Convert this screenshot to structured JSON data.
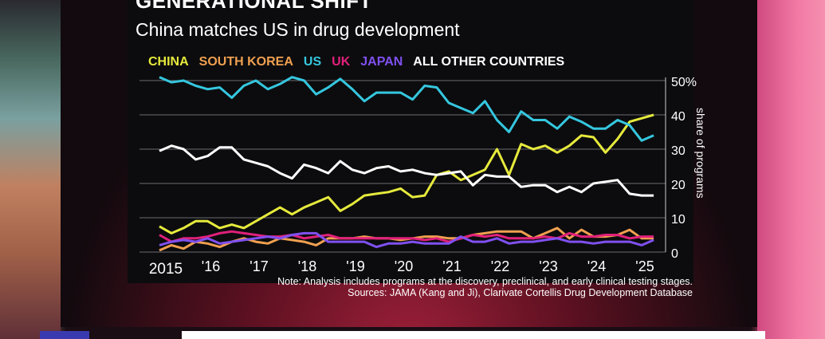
{
  "chart_data": {
    "type": "line",
    "title": "GENERATIONAL SHIFT",
    "subtitle": "China matches US in drug development",
    "ylabel": "share of programs",
    "ylim": [
      0,
      50
    ],
    "y_ticks": [
      "0",
      "10",
      "20",
      "30",
      "40",
      "50%"
    ],
    "y_tick_values": [
      0,
      10,
      20,
      30,
      40,
      50
    ],
    "x_ticks": [
      "2015",
      "'16",
      "'17",
      "'18",
      "'19",
      "'20",
      "'21",
      "'22",
      "'23",
      "'24",
      "'25"
    ],
    "x_tick_values": [
      2015,
      2016,
      2017,
      2018,
      2019,
      2020,
      2021,
      2022,
      2023,
      2024,
      2025
    ],
    "x_start": 2015,
    "x_step": 0.25,
    "grid": true,
    "legend_placement": "top",
    "series": [
      {
        "name": "CHINA",
        "color": "#e6ea3c",
        "values": [
          7.5,
          5.5,
          7,
          9,
          9,
          7,
          8,
          7,
          9,
          11,
          13,
          11,
          13,
          14.5,
          16,
          12,
          14,
          16.5,
          17,
          17.5,
          18.5,
          16,
          16.5,
          22.5,
          23.5,
          21,
          22.5,
          24,
          30,
          22.5,
          31.5,
          30,
          31,
          29,
          31,
          34,
          33.5,
          29,
          33,
          38,
          39,
          40
        ]
      },
      {
        "name": "SOUTH KOREA",
        "color": "#f0a050",
        "values": [
          0.5,
          2,
          1,
          3,
          2.5,
          1.5,
          3,
          4,
          3,
          2.5,
          4,
          3.5,
          3,
          2,
          4,
          4,
          4,
          4.5,
          4,
          4,
          3.5,
          4,
          4.5,
          4.5,
          4,
          4,
          5,
          5.5,
          6,
          6,
          6,
          4,
          5.5,
          7,
          4,
          6.5,
          4.5,
          4.5,
          5,
          6.5,
          4,
          4
        ]
      },
      {
        "name": "US",
        "color": "#35c7df",
        "values": [
          51,
          49.5,
          50,
          48.5,
          47.5,
          48,
          45,
          48.5,
          50,
          47.5,
          49,
          51,
          50,
          46,
          48,
          50.5,
          47.5,
          44,
          46.5,
          46.5,
          46.5,
          44.5,
          48.5,
          48,
          43.5,
          42,
          40.5,
          44,
          38.5,
          35,
          41,
          38.5,
          38.5,
          36,
          39.5,
          38,
          36,
          36,
          38.5,
          37,
          32.5,
          34
        ]
      },
      {
        "name": "UK",
        "color": "#e0207a",
        "values": [
          5,
          3,
          4,
          4,
          4.5,
          5.5,
          6,
          5.5,
          5,
          4.5,
          4.5,
          5,
          4,
          4.5,
          5,
          4,
          4,
          4,
          4,
          4,
          4,
          4,
          3.5,
          4,
          3,
          4,
          5,
          4.5,
          5,
          4,
          4,
          4,
          4.5,
          4,
          5.5,
          4.5,
          4.5,
          5,
          5,
          4,
          4.5,
          4.5
        ]
      },
      {
        "name": "JAPAN",
        "color": "#8050f0",
        "values": [
          2,
          3,
          3.5,
          3,
          4,
          2.5,
          3,
          3.5,
          4,
          4.5,
          4,
          5,
          5.5,
          5.5,
          3,
          3,
          3,
          3,
          1.5,
          2.5,
          2.5,
          3,
          2.5,
          2.5,
          2.5,
          4.5,
          3,
          3,
          4,
          2.5,
          3,
          3,
          3.5,
          4,
          3,
          3,
          2.5,
          3,
          3,
          3,
          2,
          3.5
        ]
      },
      {
        "name": "ALL OTHER COUNTRIES",
        "color": "#ffffff",
        "values": [
          29.5,
          31,
          30,
          27,
          28,
          30.5,
          30.5,
          27,
          26,
          25,
          23,
          21.5,
          25.5,
          24.5,
          23,
          26.5,
          24,
          23,
          24.5,
          25,
          23.5,
          24,
          23,
          22.5,
          23,
          23.5,
          19.5,
          22.5,
          22,
          22,
          19,
          19.5,
          19.5,
          17.5,
          19,
          17.5,
          20,
          20.5,
          21,
          17,
          16.5,
          16.5
        ]
      }
    ],
    "note": "Note: Analysis includes programs at the discovery, preclinical, and early clinical testing stages.",
    "sources": "Sources: JAMA (Kang and Ji), Clarivate Cortellis Drug Development Database"
  }
}
